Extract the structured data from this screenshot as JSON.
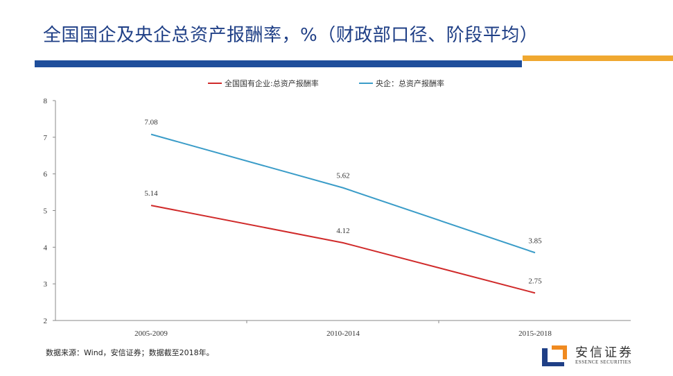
{
  "title": "全国国企及央企总资产报酬率，%（财政部口径、阶段平均）",
  "source": "数据来源：Wind，安信证券；数据截至2018年。",
  "logo": {
    "name": "安信证券",
    "sub": "ESSENCE SECURITIES"
  },
  "colors": {
    "accent_blue": "#1f4e9b",
    "accent_orange": "#f0a830"
  },
  "chart_data": {
    "type": "line",
    "categories": [
      "2005-2009",
      "2010-2014",
      "2015-2018"
    ],
    "series": [
      {
        "name": "全国国有企业:总资产报酬率",
        "values": [
          5.14,
          4.12,
          2.75
        ],
        "labels": [
          "5.14",
          "4.12",
          "2.75"
        ],
        "color": "#d02a2a"
      },
      {
        "name": "央企：总资产报酬率",
        "values": [
          7.08,
          5.62,
          3.85
        ],
        "labels": [
          "7.08",
          "5.62",
          "3.85"
        ],
        "color": "#3a9cc8"
      }
    ],
    "ylim": [
      2,
      8
    ],
    "yticks": [
      "2",
      "3",
      "4",
      "5",
      "6",
      "7",
      "8"
    ],
    "legend": "top",
    "grid": false
  }
}
